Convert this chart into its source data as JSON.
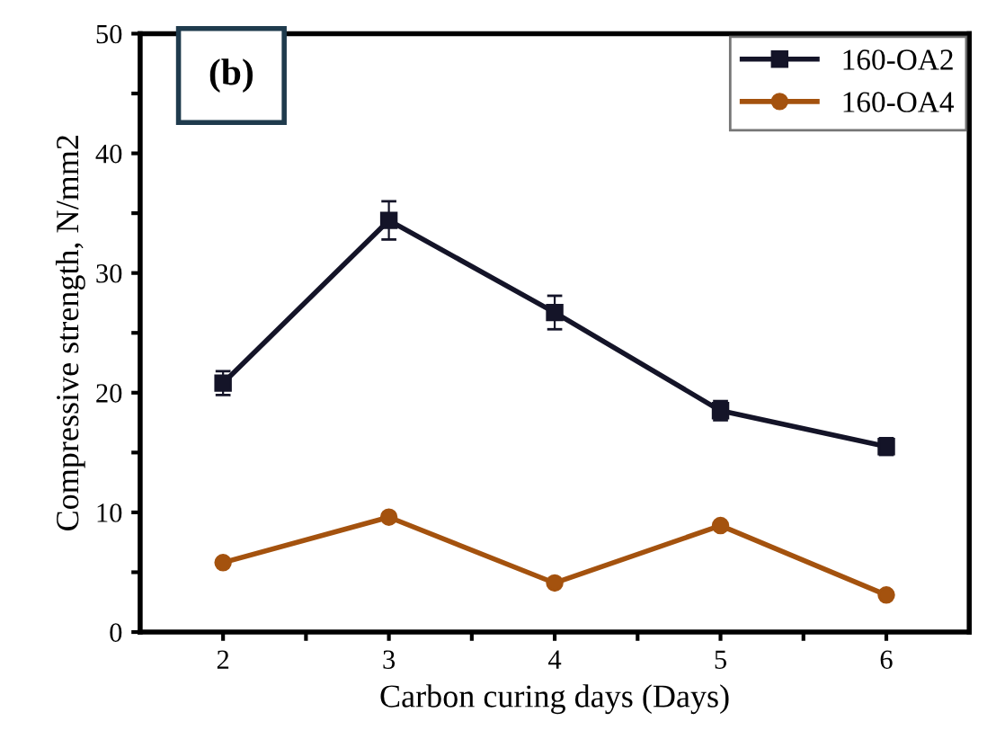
{
  "chart_data": {
    "type": "line",
    "xlabel": "Carbon curing days (Days)",
    "ylabel": "Compressive strength, N/mm2",
    "annotations": [
      "(b)"
    ],
    "x": [
      2,
      3,
      4,
      5,
      6
    ],
    "series": [
      {
        "name": "160-OA2",
        "color": "#141428",
        "marker": "square",
        "values": [
          20.8,
          34.4,
          26.7,
          18.5,
          15.5
        ],
        "errors": [
          1.0,
          1.6,
          1.4,
          0.8,
          0.7
        ]
      },
      {
        "name": "160-OA4",
        "color": "#a4520e",
        "marker": "circle",
        "values": [
          5.8,
          9.6,
          4.1,
          8.9,
          3.1
        ]
      }
    ],
    "xlim": [
      1.5,
      6.5
    ],
    "ylim": [
      0,
      50
    ],
    "xticks": [
      2,
      {
        "value": 2.5,
        "label": null
      },
      3,
      {
        "value": 3.5,
        "label": null
      },
      4,
      {
        "value": 4.5,
        "label": null
      },
      5,
      {
        "value": 5.5,
        "label": null
      },
      6
    ],
    "yticks": [
      0,
      {
        "value": 5,
        "label": null
      },
      10,
      {
        "value": 15,
        "label": null
      },
      20,
      {
        "value": 25,
        "label": null
      },
      30,
      {
        "value": 35,
        "label": null
      },
      40,
      {
        "value": 45,
        "label": null
      },
      50
    ],
    "grid": false,
    "legend": "top right",
    "line_style": "solid"
  }
}
